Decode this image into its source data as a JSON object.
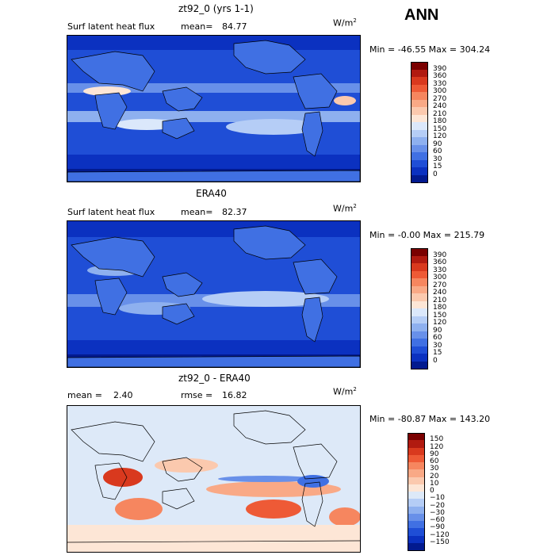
{
  "season": "ANN",
  "panels": [
    {
      "title": "zt92_0 (yrs 1-1)",
      "left_label": "Surf latent heat flux",
      "mean_label": "mean=",
      "mean_value": "84.77",
      "units_base": "W/m",
      "units_exp": "2",
      "minmax": "Min = -46.55 Max = 304.24",
      "colorbar": {
        "labels": [
          "390",
          "360",
          "330",
          "300",
          "270",
          "240",
          "210",
          "180",
          "150",
          "120",
          "90",
          "60",
          "30",
          "15",
          "0"
        ],
        "colors": [
          "#7a0000",
          "#b11a10",
          "#d9391e",
          "#ee5a36",
          "#f6865f",
          "#f9a986",
          "#fbc9ae",
          "#fde6d6",
          "#dbe8fb",
          "#b5cdf6",
          "#8eb0ef",
          "#6890e9",
          "#4070e3",
          "#1f4ed6",
          "#0b31c0",
          "#021a8f"
        ]
      }
    },
    {
      "title": "ERA40",
      "left_label": "Surf latent heat flux",
      "mean_label": "mean=",
      "mean_value": "82.37",
      "units_base": "W/m",
      "units_exp": "2",
      "minmax": "Min =  -0.00 Max = 215.79",
      "colorbar": {
        "labels": [
          "390",
          "360",
          "330",
          "300",
          "270",
          "240",
          "210",
          "180",
          "150",
          "120",
          "90",
          "60",
          "30",
          "15",
          "0"
        ],
        "colors": [
          "#7a0000",
          "#b11a10",
          "#d9391e",
          "#ee5a36",
          "#f6865f",
          "#f9a986",
          "#fbc9ae",
          "#fde6d6",
          "#dbe8fb",
          "#b5cdf6",
          "#8eb0ef",
          "#6890e9",
          "#4070e3",
          "#1f4ed6",
          "#0b31c0",
          "#021a8f"
        ]
      }
    },
    {
      "title": "zt92_0 - ERA40",
      "left_label": "mean =",
      "mean_label": "",
      "mean_value": "2.40",
      "rmse_label": "rmse =",
      "rmse_value": "16.82",
      "units_base": "W/m",
      "units_exp": "2",
      "minmax": "Min = -80.87 Max = 143.20",
      "colorbar": {
        "labels": [
          "150",
          "120",
          "90",
          "60",
          "30",
          "20",
          "10",
          "0",
          "−10",
          "−20",
          "−30",
          "−60",
          "−90",
          "−120",
          "−150"
        ],
        "colors": [
          "#7a0000",
          "#b11a10",
          "#d9391e",
          "#ee5a36",
          "#f6865f",
          "#f9a986",
          "#fbc9ae",
          "#fde6d6",
          "#dde9f8",
          "#b5cdf6",
          "#8eb0ef",
          "#6890e9",
          "#4070e3",
          "#1f4ed6",
          "#0b31c0",
          "#021a8f"
        ]
      }
    }
  ]
}
